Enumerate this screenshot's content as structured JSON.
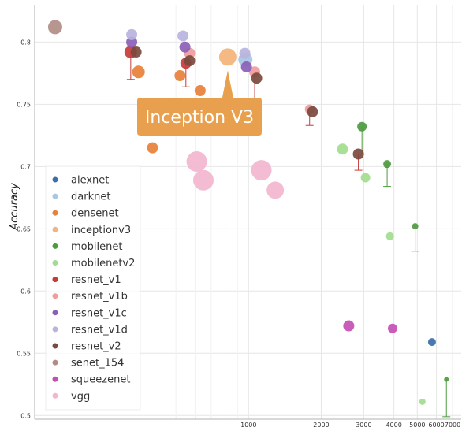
{
  "chart_data": {
    "type": "scatter",
    "title": "",
    "xlabel": "",
    "ylabel": "Accuracy",
    "x_scale": "log",
    "xlim": [
      130,
      7600
    ],
    "ylim": [
      0.497,
      0.83
    ],
    "grid": true,
    "legend_position": "bottom-left",
    "x_ticks": [
      {
        "value": 1000,
        "label": "1000"
      },
      {
        "value": 2000,
        "label": "2000"
      },
      {
        "value": 3000,
        "label": "3000"
      },
      {
        "value": 4000,
        "label": "4000"
      },
      {
        "value": 5000,
        "label": "5000"
      },
      {
        "value": 6000,
        "label": "6000"
      },
      {
        "value": 7000,
        "label": "7000"
      }
    ],
    "y_ticks": [
      {
        "value": 0.5,
        "label": "0.5"
      },
      {
        "value": 0.55,
        "label": "0.55"
      },
      {
        "value": 0.6,
        "label": "0.6"
      },
      {
        "value": 0.65,
        "label": "0.65"
      },
      {
        "value": 0.7,
        "label": "0.7"
      },
      {
        "value": 0.75,
        "label": "0.75"
      },
      {
        "value": 0.8,
        "label": "0.8"
      }
    ],
    "series": [
      {
        "name": "alexnet",
        "color": "#3a6fa8",
        "points": [
          {
            "x": 5750,
            "y": 0.559,
            "size": 5
          }
        ]
      },
      {
        "name": "darknet",
        "color": "#a9c6e3",
        "points": [
          {
            "x": 970,
            "y": 0.786,
            "size": 9
          }
        ]
      },
      {
        "name": "densenet",
        "color": "#e8803a",
        "points": [
          {
            "x": 350,
            "y": 0.776,
            "size": 8
          },
          {
            "x": 520,
            "y": 0.773,
            "size": 7
          },
          {
            "x": 630,
            "y": 0.761,
            "size": 7
          },
          {
            "x": 790,
            "y": 0.748,
            "size": 7
          },
          {
            "x": 450,
            "y": 0.733,
            "size": 7
          },
          {
            "x": 400,
            "y": 0.715,
            "size": 7
          }
        ]
      },
      {
        "name": "inceptionv3",
        "color": "#f4b37a",
        "points": [
          {
            "x": 820,
            "y": 0.788,
            "size": 11
          }
        ]
      },
      {
        "name": "mobilenet",
        "color": "#4e9a3f",
        "points": [
          {
            "x": 2950,
            "y": 0.732,
            "size": 6
          },
          {
            "x": 3750,
            "y": 0.702,
            "size": 5
          },
          {
            "x": 4900,
            "y": 0.652,
            "size": 4
          },
          {
            "x": 6600,
            "y": 0.529,
            "size": 3
          }
        ]
      },
      {
        "name": "mobilenetv2",
        "color": "#a3dc8f",
        "points": [
          {
            "x": 2450,
            "y": 0.714,
            "size": 7
          },
          {
            "x": 3050,
            "y": 0.691,
            "size": 6
          },
          {
            "x": 3850,
            "y": 0.644,
            "size": 5
          },
          {
            "x": 5250,
            "y": 0.511,
            "size": 4
          }
        ]
      },
      {
        "name": "resnet_v1",
        "color": "#c73a3a",
        "points": [
          {
            "x": 325,
            "y": 0.792,
            "size": 8
          },
          {
            "x": 550,
            "y": 0.783,
            "size": 7
          }
        ]
      },
      {
        "name": "resnet_v1b",
        "color": "#f19b9b",
        "points": [
          {
            "x": 570,
            "y": 0.791,
            "size": 7
          },
          {
            "x": 1060,
            "y": 0.776,
            "size": 7
          },
          {
            "x": 1790,
            "y": 0.746,
            "size": 6
          }
        ]
      },
      {
        "name": "resnet_v1c",
        "color": "#8a5fb8",
        "points": [
          {
            "x": 328,
            "y": 0.8,
            "size": 7
          },
          {
            "x": 545,
            "y": 0.796,
            "size": 7
          },
          {
            "x": 980,
            "y": 0.78,
            "size": 7
          }
        ]
      },
      {
        "name": "resnet_v1d",
        "color": "#b9b3dd",
        "points": [
          {
            "x": 328,
            "y": 0.806,
            "size": 7
          },
          {
            "x": 535,
            "y": 0.805,
            "size": 7
          },
          {
            "x": 965,
            "y": 0.791,
            "size": 7
          }
        ]
      },
      {
        "name": "resnet_v2",
        "color": "#7a4a3e",
        "points": [
          {
            "x": 342,
            "y": 0.792,
            "size": 7
          },
          {
            "x": 570,
            "y": 0.785,
            "size": 7
          },
          {
            "x": 1080,
            "y": 0.771,
            "size": 7
          },
          {
            "x": 1840,
            "y": 0.744,
            "size": 7
          },
          {
            "x": 2850,
            "y": 0.71,
            "size": 7
          }
        ]
      },
      {
        "name": "senet_154",
        "color": "#b08d84",
        "points": [
          {
            "x": 158,
            "y": 0.812,
            "size": 9
          }
        ]
      },
      {
        "name": "squeezenet",
        "color": "#c44fb3",
        "points": [
          {
            "x": 2600,
            "y": 0.572,
            "size": 7
          },
          {
            "x": 3950,
            "y": 0.57,
            "size": 6
          }
        ]
      },
      {
        "name": "vgg",
        "color": "#f2b6cf",
        "points": [
          {
            "x": 440,
            "y": 0.745,
            "size": 11
          },
          {
            "x": 610,
            "y": 0.704,
            "size": 13
          },
          {
            "x": 650,
            "y": 0.689,
            "size": 13
          },
          {
            "x": 1130,
            "y": 0.697,
            "size": 13
          },
          {
            "x": 1290,
            "y": 0.681,
            "size": 11
          }
        ]
      }
    ],
    "error_bars": [
      {
        "x": 325,
        "from": 0.792,
        "to": 0.77,
        "color": "#c73a3a"
      },
      {
        "x": 550,
        "from": 0.783,
        "to": 0.764,
        "color": "#c73a3a"
      },
      {
        "x": 1060,
        "from": 0.776,
        "to": 0.753,
        "color": "#c73a3a"
      },
      {
        "x": 1790,
        "from": 0.746,
        "to": 0.733,
        "color": "#c73a3a"
      },
      {
        "x": 2850,
        "from": 0.71,
        "to": 0.697,
        "color": "#c73a3a"
      },
      {
        "x": 2950,
        "from": 0.732,
        "to": 0.71,
        "color": "#4e9a3f"
      },
      {
        "x": 3750,
        "from": 0.702,
        "to": 0.684,
        "color": "#4e9a3f"
      },
      {
        "x": 4900,
        "from": 0.652,
        "to": 0.632,
        "color": "#4e9a3f"
      },
      {
        "x": 6600,
        "from": 0.529,
        "to": 0.499,
        "color": "#4e9a3f"
      }
    ],
    "tooltip": {
      "label": "Inception V3",
      "color": "#e8a04e",
      "target_series": "inceptionv3"
    }
  }
}
